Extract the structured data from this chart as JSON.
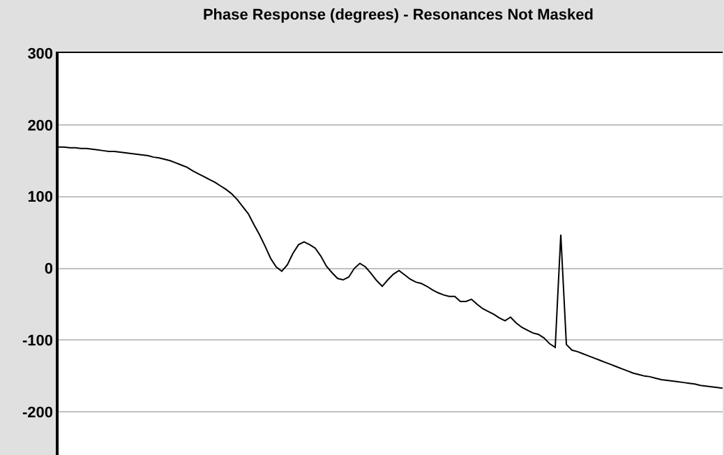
{
  "chart_data": {
    "type": "line",
    "title": "Phase Response (degrees) - Resonances Not Masked",
    "categories": [
      null,
      null,
      null,
      null,
      null,
      null,
      null,
      null,
      null,
      null,
      null,
      null,
      null,
      null,
      null,
      null,
      null,
      null,
      null,
      null,
      null,
      null,
      null,
      null,
      null,
      null,
      null,
      null,
      null,
      null,
      null,
      null,
      null,
      null,
      null,
      null,
      null,
      null,
      null,
      null,
      null,
      null,
      null,
      null,
      null,
      null,
      null,
      null,
      null,
      null,
      null,
      null,
      null,
      null,
      null,
      null,
      null,
      null,
      null,
      null,
      null,
      null,
      null,
      null,
      null,
      null,
      null,
      null,
      null,
      null,
      null,
      null,
      null,
      null,
      null,
      null,
      null,
      null,
      null,
      null,
      null,
      null,
      null,
      null,
      null,
      null,
      null,
      null,
      null,
      null,
      null,
      null,
      null,
      null,
      null,
      null,
      null,
      null,
      null,
      null,
      null,
      null,
      null,
      null,
      null,
      null,
      null,
      null,
      null,
      null,
      null,
      null,
      null,
      null,
      null,
      null,
      null,
      null,
      null,
      null
    ],
    "series": [
      {
        "color": "#000000",
        "values": [
          169,
          169,
          168,
          168,
          167,
          167,
          166,
          165,
          164,
          163,
          163,
          162,
          161,
          160,
          159,
          158,
          157,
          155,
          154,
          152,
          150,
          147,
          144,
          141,
          136,
          132,
          128,
          124,
          120,
          115,
          110,
          104,
          96,
          86,
          76,
          61,
          47,
          31,
          14,
          2,
          -4,
          5,
          21,
          33,
          37,
          33,
          28,
          17,
          3,
          -6,
          -14,
          -16,
          -12,
          0,
          7,
          2,
          -7,
          -17,
          -25,
          -16,
          -8,
          -3,
          -9,
          -15,
          -19,
          -21,
          -25,
          -30,
          -34,
          -37,
          -39,
          -39,
          -46,
          -46,
          -43,
          -50,
          -56,
          -60,
          -64,
          -69,
          -73,
          -68,
          -76,
          -82,
          -86,
          -90,
          -92,
          -97,
          -105,
          -110,
          47,
          -106,
          -114,
          -116,
          -119,
          -122,
          -125,
          -128,
          -131,
          -134,
          -137,
          -140,
          -143,
          -146,
          -148,
          -150,
          -151,
          -153,
          -155,
          -156,
          -157,
          -158,
          -159,
          -160,
          -161,
          -163,
          -164,
          -165,
          -166,
          -167
        ]
      }
    ],
    "ylim": [
      -260,
      300
    ],
    "yticks": [
      -200,
      -100,
      0,
      100,
      200,
      300
    ],
    "grid": "y",
    "tick_labels": "y",
    "marker": "none",
    "line_style": "solid"
  }
}
